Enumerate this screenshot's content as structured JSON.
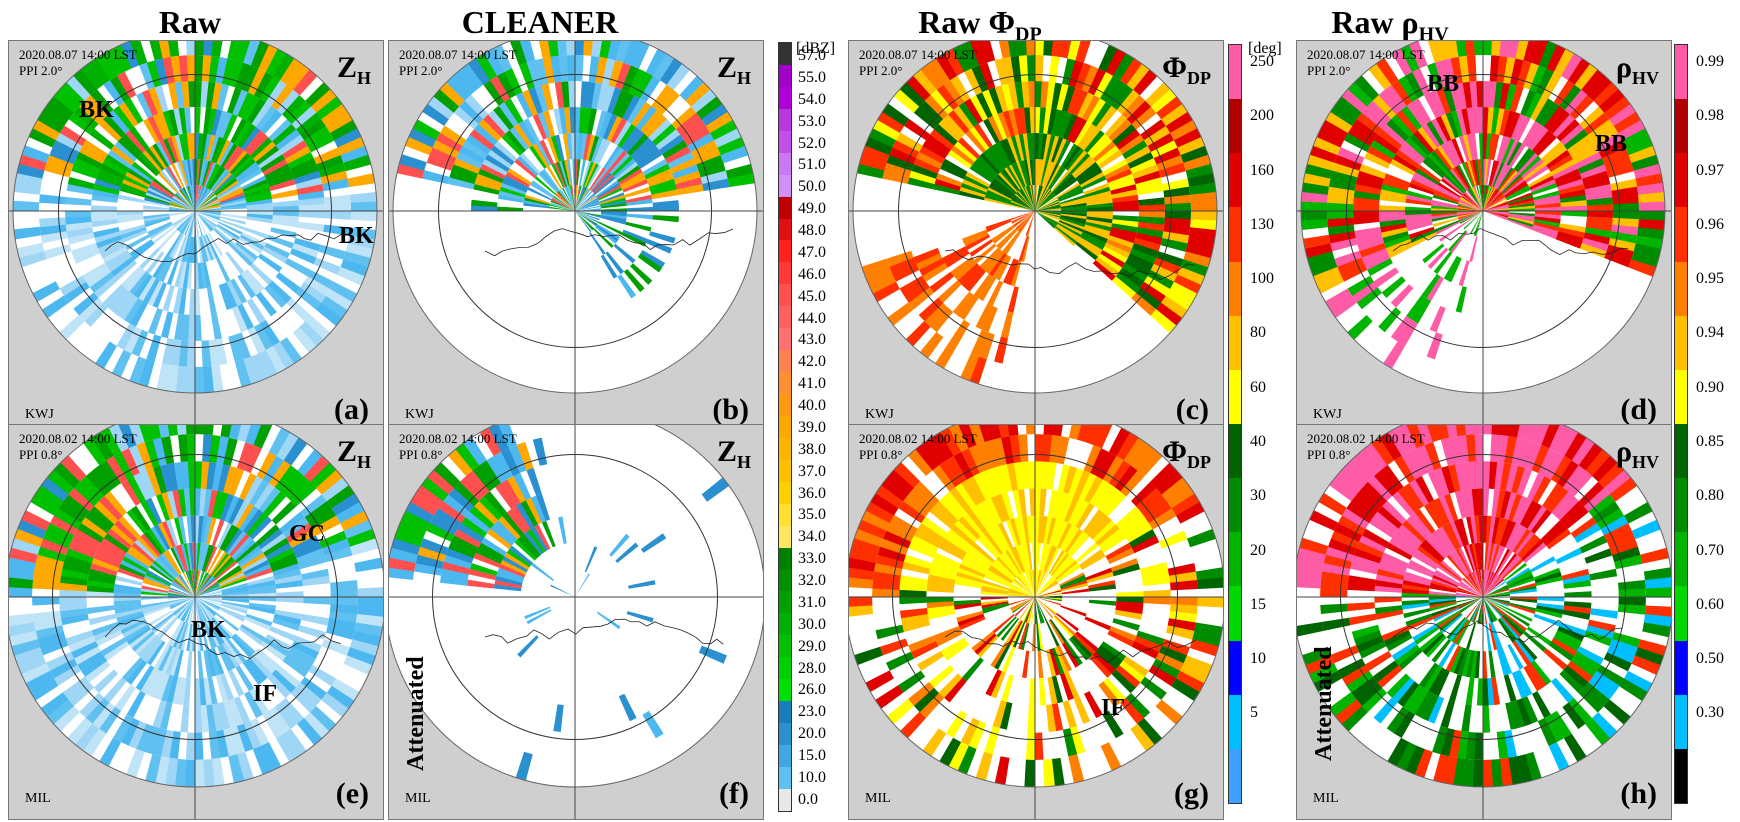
{
  "column_titles": [
    {
      "main": "Raw",
      "sub": ""
    },
    {
      "main": "CLEANER",
      "sub": ""
    },
    {
      "main": "Raw  Φ",
      "sub": "DP"
    },
    {
      "main": "Raw  ρ",
      "sub": "HV"
    }
  ],
  "panels": [
    {
      "id": "a",
      "date": "2020.08.07 14:00 LST",
      "ppi": "PPI  2.0°",
      "var": "Z",
      "sub": "H",
      "radar": "KWJ",
      "label": "(a)",
      "annotations": [
        {
          "text": "BK",
          "kind": "plain"
        },
        {
          "text": "BK",
          "kind": "plain"
        }
      ],
      "palette": "zh",
      "mode": "sector-raw"
    },
    {
      "id": "b",
      "date": "2020.08.07 14:00 LST",
      "ppi": "PPI  2.0°",
      "var": "Z",
      "sub": "H",
      "radar": "KWJ",
      "label": "(b)",
      "annotations": [],
      "palette": "zh",
      "mode": "sector-clean"
    },
    {
      "id": "c",
      "date": "2020.08.07 14:00 LST",
      "ppi": "PPI  2.0°",
      "var": "Φ",
      "sub": "DP",
      "radar": "KWJ",
      "label": "(c)",
      "annotations": [],
      "palette": "phi",
      "mode": "sector-phi"
    },
    {
      "id": "d",
      "date": "2020.08.07 14:00 LST",
      "ppi": "PPI  2.0°",
      "var": "ρ",
      "sub": "HV",
      "radar": "KWJ",
      "label": "(d)",
      "annotations": [
        {
          "text": "BB",
          "kind": "plain"
        },
        {
          "text": "BB",
          "kind": "plain"
        }
      ],
      "palette": "rho",
      "mode": "sector-rho"
    },
    {
      "id": "e",
      "date": "2020.08.02 14:00 LST",
      "ppi": "PPI  0.8°",
      "var": "Z",
      "sub": "H",
      "radar": "MIL",
      "label": "(e)",
      "annotations": [
        {
          "text": "GC",
          "kind": "plain"
        },
        {
          "text": "BK",
          "kind": "plain"
        },
        {
          "text": "IF",
          "kind": "plain"
        }
      ],
      "palette": "zh",
      "mode": "full-raw"
    },
    {
      "id": "f",
      "date": "2020.08.02 14:00 LST",
      "ppi": "PPI  0.8°",
      "var": "Z",
      "sub": "H",
      "radar": "MIL",
      "label": "(f)",
      "annotations": [
        {
          "text": "Attenuated",
          "kind": "vertical"
        }
      ],
      "palette": "zh",
      "mode": "full-clean"
    },
    {
      "id": "g",
      "date": "2020.08.02 14:00 LST",
      "ppi": "PPI  0.8°",
      "var": "Φ",
      "sub": "DP",
      "radar": "MIL",
      "label": "(g)",
      "annotations": [
        {
          "text": "IF",
          "kind": "plain"
        }
      ],
      "palette": "phi",
      "mode": "full-phi"
    },
    {
      "id": "h",
      "date": "2020.08.02 14:00 LST",
      "ppi": "PPI  0.8°",
      "var": "ρ",
      "sub": "HV",
      "radar": "MIL",
      "label": "(h)",
      "annotations": [
        {
          "text": "Attenuated",
          "kind": "vertical"
        }
      ],
      "palette": "rho",
      "mode": "full-rho"
    }
  ],
  "colorbars": {
    "zh": {
      "unit": "[dBZ]",
      "ticks": [
        "57.0",
        "55.0",
        "54.0",
        "53.0",
        "52.0",
        "51.0",
        "50.0",
        "49.0",
        "48.0",
        "47.0",
        "46.0",
        "45.0",
        "44.0",
        "43.0",
        "42.0",
        "41.0",
        "40.0",
        "39.0",
        "38.0",
        "37.0",
        "36.0",
        "35.0",
        "34.0",
        "33.0",
        "32.0",
        "31.0",
        "30.0",
        "29.0",
        "28.0",
        "26.0",
        "23.0",
        "20.0",
        "15.0",
        "10.0",
        "0.0"
      ],
      "colors": [
        "#333333",
        "#a000c8",
        "#b000d8",
        "#b838e0",
        "#c050e8",
        "#c878f0",
        "#d090f8",
        "#c00000",
        "#e01010",
        "#ff2020",
        "#ff3838",
        "#ff5050",
        "#ff6060",
        "#ff7070",
        "#ff8050",
        "#ff9030",
        "#ff9a10",
        "#ffa800",
        "#ffb400",
        "#ffc000",
        "#ffd000",
        "#ffe030",
        "#ffe860",
        "#008000",
        "#009000",
        "#00a000",
        "#00b000",
        "#00c000",
        "#00d000",
        "#00e000",
        "#1a7bbd",
        "#2a90d0",
        "#40a8e0",
        "#60c0f0",
        "#e8e8e8"
      ]
    },
    "phi": {
      "unit": "[deg]",
      "ticks": [
        "250",
        "200",
        "160",
        "130",
        "100",
        "80",
        "60",
        "40",
        "30",
        "20",
        "15",
        "10",
        "5"
      ],
      "colors": [
        "#ff5ca8",
        "#b00000",
        "#e00000",
        "#ff3000",
        "#ff8000",
        "#ffc000",
        "#ffff00",
        "#006400",
        "#008c00",
        "#00b400",
        "#00d800",
        "#0000ff",
        "#00bfff",
        "#40a0ff"
      ]
    },
    "rho": {
      "unit": "",
      "ticks": [
        "0.99",
        "0.98",
        "0.97",
        "0.96",
        "0.95",
        "0.94",
        "0.90",
        "0.85",
        "0.80",
        "0.70",
        "0.60",
        "0.50",
        "0.30"
      ],
      "colors": [
        "#ff5ca8",
        "#b00000",
        "#e00000",
        "#ff3000",
        "#ff8000",
        "#ffc000",
        "#ffff00",
        "#006400",
        "#008c00",
        "#00b400",
        "#00d800",
        "#0000ff",
        "#00bfff",
        "#000000"
      ]
    }
  }
}
